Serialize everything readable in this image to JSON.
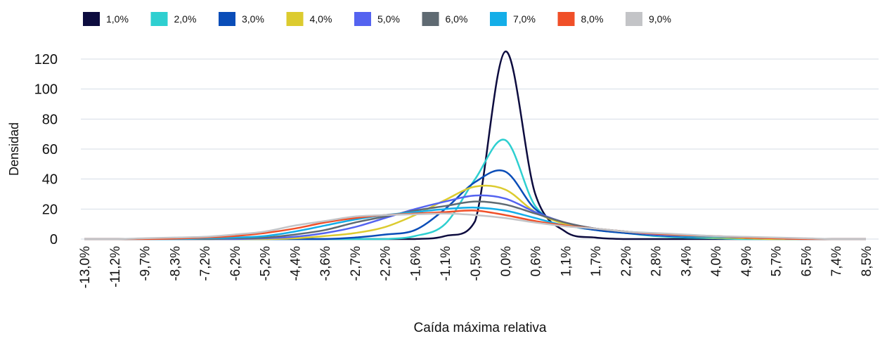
{
  "chart_data": {
    "type": "line",
    "x_label": "Caída máxima relativa",
    "y_label": "Densidad",
    "categories": [
      "-13,0%",
      "-11,2%",
      "-9,7%",
      "-8,3%",
      "-7,2%",
      "-6,2%",
      "-5,2%",
      "-4,4%",
      "-3,6%",
      "-2,7%",
      "-2,2%",
      "-1,6%",
      "-1,1%",
      "-0,5%",
      "0,0%",
      "0,6%",
      "1,1%",
      "1,7%",
      "2,2%",
      "2,8%",
      "3,4%",
      "4,0%",
      "4,9%",
      "5,7%",
      "6,5%",
      "7,4%",
      "8,5%"
    ],
    "series": [
      {
        "name": "1,0%",
        "color": "#0d0c3f",
        "values": [
          0,
          0,
          0,
          0,
          0,
          0,
          0,
          0,
          0,
          0,
          0,
          0,
          2,
          12,
          125,
          30,
          5,
          1,
          0,
          0,
          0,
          0,
          0,
          0,
          0,
          0,
          0
        ]
      },
      {
        "name": "2,0%",
        "color": "#2ecfd0",
        "values": [
          0,
          0,
          0,
          0,
          0,
          0,
          0,
          0,
          0,
          0,
          0,
          2,
          10,
          40,
          66,
          22,
          10,
          6,
          4,
          2,
          1,
          0.5,
          0,
          0,
          0,
          0,
          0
        ]
      },
      {
        "name": "3,0%",
        "color": "#0a4db8",
        "values": [
          0,
          0,
          0,
          0,
          0,
          0,
          0,
          0,
          0,
          1,
          3,
          6,
          20,
          38,
          45,
          20,
          10,
          6,
          4,
          2.5,
          1.5,
          1,
          0.5,
          0,
          0,
          0,
          0
        ]
      },
      {
        "name": "4,0%",
        "color": "#dccb2f",
        "values": [
          0,
          0,
          0,
          0,
          0,
          0,
          0,
          0.5,
          2,
          4,
          8,
          16,
          26,
          35,
          33,
          18,
          10,
          7,
          5,
          3,
          2,
          1,
          0.5,
          0,
          0,
          0,
          0
        ]
      },
      {
        "name": "5,0%",
        "color": "#5463f0",
        "values": [
          0,
          0,
          0,
          0,
          0,
          0,
          0.5,
          1.5,
          4,
          8,
          14,
          20,
          25,
          29,
          27,
          18,
          11,
          7,
          5,
          3,
          2,
          1.5,
          1,
          0.5,
          0,
          0,
          0
        ]
      },
      {
        "name": "6,0%",
        "color": "#5f6a72",
        "values": [
          0,
          0,
          0,
          0,
          0,
          0.5,
          1,
          3,
          6,
          11,
          15,
          19,
          22,
          25,
          23,
          17,
          11,
          7,
          5,
          3.5,
          2.5,
          1.5,
          1,
          0.5,
          0,
          0,
          0
        ]
      },
      {
        "name": "7,0%",
        "color": "#14aee8",
        "values": [
          0,
          0,
          0,
          0,
          0.5,
          1,
          2,
          5,
          9,
          13,
          16,
          18,
          20,
          21,
          19,
          14,
          9,
          7,
          5,
          3.5,
          2,
          1.5,
          1,
          0.5,
          0,
          0,
          0
        ]
      },
      {
        "name": "8,0%",
        "color": "#f04f28",
        "values": [
          0,
          0,
          0,
          0.3,
          1,
          2,
          4,
          7,
          11,
          14,
          16,
          17,
          18,
          19,
          16,
          12,
          9,
          7,
          5,
          3.5,
          2.5,
          2,
          1,
          0.5,
          0,
          0,
          0
        ]
      },
      {
        "name": "9,0%",
        "color": "#c3c4c7",
        "values": [
          0,
          0,
          0.5,
          1,
          1.5,
          3,
          5,
          9,
          12,
          15,
          16,
          16.5,
          17,
          16,
          14,
          11,
          8.5,
          7,
          5,
          4,
          3,
          2,
          1.5,
          1,
          0.5,
          0,
          0
        ]
      }
    ],
    "ylim": [
      0,
      130
    ],
    "yticks": [
      0,
      20,
      40,
      60,
      80,
      100,
      120
    ],
    "grid": true
  }
}
